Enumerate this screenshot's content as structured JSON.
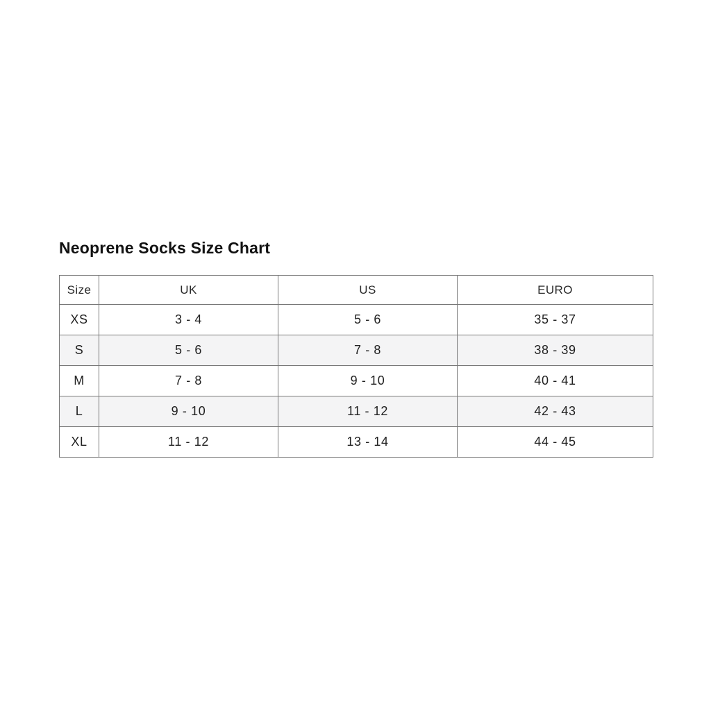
{
  "page": {
    "title": "Neoprene Socks Size Chart"
  },
  "chart_data": {
    "type": "table",
    "title": "Neoprene Socks Size Chart",
    "columns": [
      "Size",
      "UK",
      "US",
      "EURO"
    ],
    "rows": [
      [
        "XS",
        "3 - 4",
        "5 - 6",
        "35 - 37"
      ],
      [
        "S",
        "5 - 6",
        "7 - 8",
        "38 - 39"
      ],
      [
        "M",
        "7 - 8",
        "9 - 10",
        "40 - 41"
      ],
      [
        "L",
        "9 - 10",
        "11 - 12",
        "42 - 43"
      ],
      [
        "XL",
        "11 - 12",
        "13 - 14",
        "44 - 45"
      ]
    ],
    "layout": {
      "striped_rows": [
        1,
        3
      ],
      "grid": true
    }
  },
  "colors": {
    "border": "#777777",
    "stripe": "#f4f4f5",
    "text": "#222222",
    "title": "#121212",
    "background": "#ffffff"
  }
}
